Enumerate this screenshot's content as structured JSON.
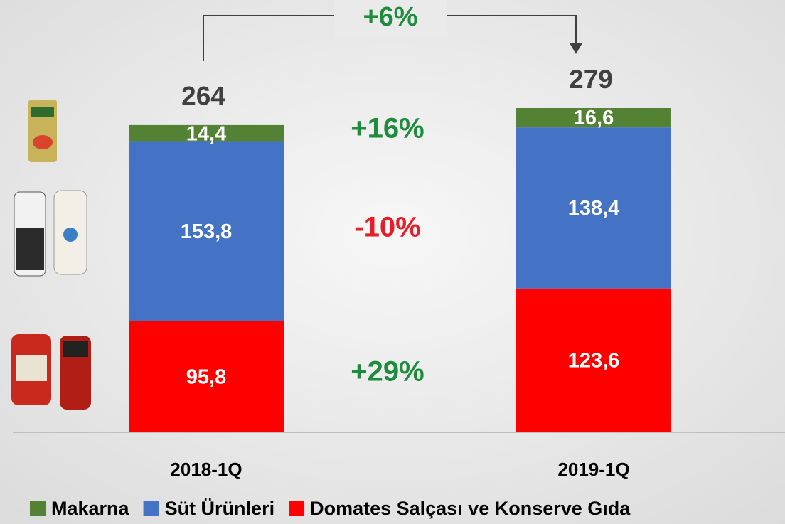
{
  "chart_data": {
    "type": "stacked-bar",
    "categories": [
      "2018-1Q",
      "2019-1Q"
    ],
    "series": [
      {
        "name": "Makarna",
        "color": "#548235",
        "values": [
          14.4,
          16.6
        ],
        "value_labels": [
          "14,4",
          "16,6"
        ]
      },
      {
        "name": "Süt Ürünleri",
        "color": "#4472c4",
        "values": [
          153.8,
          138.4
        ],
        "value_labels": [
          "153,8",
          "138,4"
        ]
      },
      {
        "name": "Domates Salçası ve Konserve Gıda",
        "color": "#ff0000",
        "values": [
          95.8,
          123.6
        ],
        "value_labels": [
          "95,8",
          "123,6"
        ]
      }
    ],
    "totals": [
      264,
      279
    ],
    "total_growth": {
      "text": "+6%",
      "color": "#1e8c3c"
    },
    "series_growth": [
      {
        "text": "+16%",
        "color": "#1e8c3c"
      },
      {
        "text": "-10%",
        "color": "#e3202a"
      },
      {
        "text": "+29%",
        "color": "#1e8c3c"
      }
    ]
  }
}
